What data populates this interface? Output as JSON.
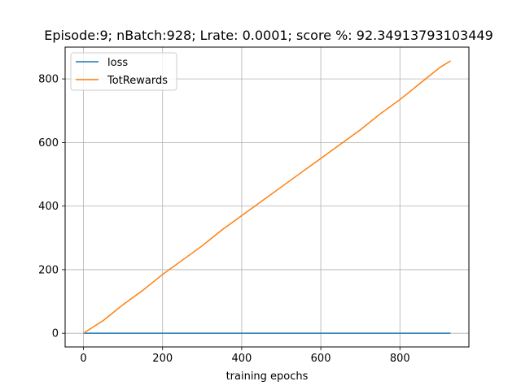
{
  "chart_data": {
    "type": "line",
    "title": "Episode:9; nBatch:928; Lrate: 0.0001; score %: 92.34913793103449",
    "xlabel": "training epochs",
    "ylabel": "",
    "xlim": [
      -46.4,
      974.4
    ],
    "ylim": [
      -43,
      900
    ],
    "xticks": [
      0,
      200,
      400,
      600,
      800
    ],
    "yticks": [
      0,
      200,
      400,
      600,
      800
    ],
    "grid": true,
    "legend_position": "top-left",
    "series": [
      {
        "name": "loss",
        "color": "#1f77b4",
        "x": [
          0,
          100,
          200,
          300,
          400,
          500,
          600,
          700,
          800,
          928
        ],
        "y": [
          0,
          0,
          0,
          0,
          0,
          0,
          0,
          0,
          0,
          0
        ]
      },
      {
        "name": "TotRewards",
        "color": "#ff7f0e",
        "x": [
          0,
          50,
          100,
          150,
          200,
          250,
          300,
          350,
          400,
          450,
          500,
          550,
          600,
          650,
          700,
          750,
          800,
          850,
          900,
          928
        ],
        "y": [
          0,
          40,
          90,
          135,
          185,
          230,
          275,
          325,
          370,
          415,
          460,
          505,
          550,
          595,
          640,
          690,
          735,
          785,
          835,
          857
        ]
      }
    ]
  }
}
